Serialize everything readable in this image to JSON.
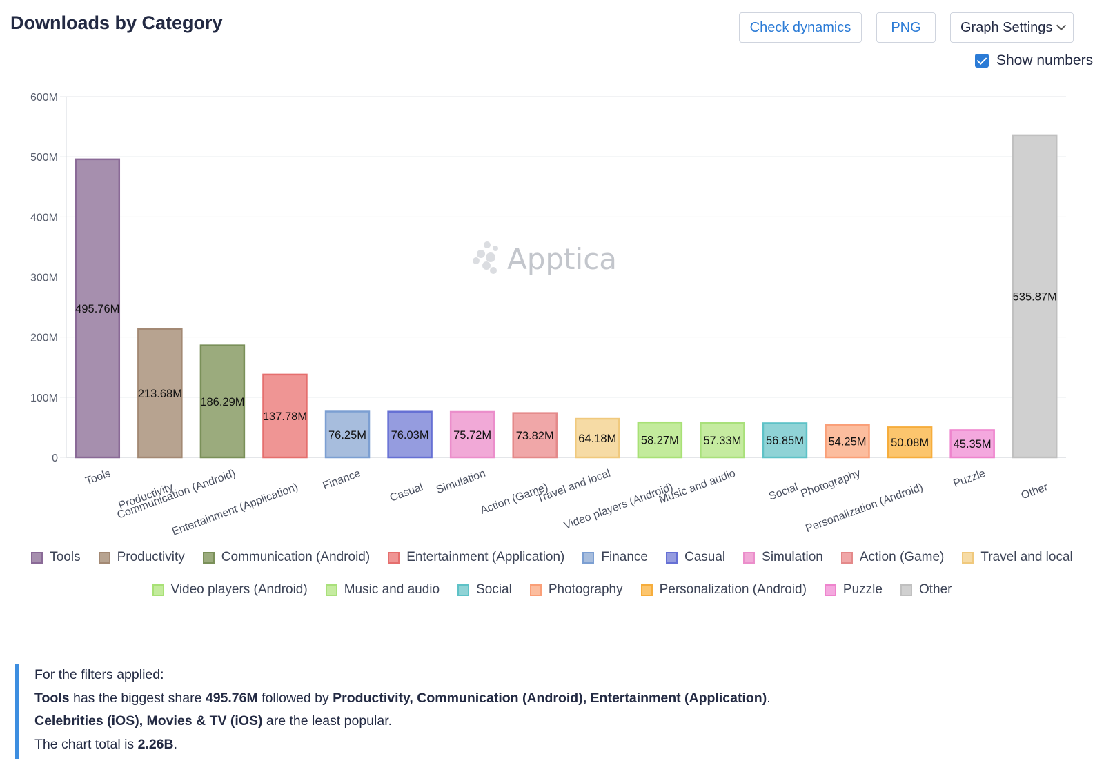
{
  "header": {
    "title": "Downloads by Category",
    "check_dynamics_label": "Check dynamics",
    "png_label": "PNG",
    "graph_settings_label": "Graph Settings",
    "show_numbers_label": "Show numbers",
    "show_numbers_checked": true
  },
  "watermark": "Apptica",
  "chart_data": {
    "type": "bar",
    "title": "Downloads by Category",
    "xlabel": "",
    "ylabel": "",
    "ylim": [
      0,
      600000000
    ],
    "yticks": [
      {
        "value": 0,
        "label": "0"
      },
      {
        "value": 100000000,
        "label": "100M"
      },
      {
        "value": 200000000,
        "label": "200M"
      },
      {
        "value": 300000000,
        "label": "300M"
      },
      {
        "value": 400000000,
        "label": "400M"
      },
      {
        "value": 500000000,
        "label": "500M"
      },
      {
        "value": 600000000,
        "label": "600M"
      }
    ],
    "grid": true,
    "legend_position": "bottom",
    "categories": [
      "Tools",
      "Productivity",
      "Communication (Android)",
      "Entertainment (Application)",
      "Finance",
      "Casual",
      "Simulation",
      "Action (Game)",
      "Travel and local",
      "Video players (Android)",
      "Music and audio",
      "Social",
      "Photography",
      "Personalization (Android)",
      "Puzzle",
      "Other"
    ],
    "values": [
      495760000,
      213680000,
      186290000,
      137780000,
      76250000,
      76030000,
      75720000,
      73820000,
      64180000,
      58270000,
      57330000,
      56850000,
      54250000,
      50080000,
      45350000,
      535870000
    ],
    "value_labels": [
      "495.76M",
      "213.68M",
      "186.29M",
      "137.78M",
      "76.25M",
      "76.03M",
      "75.72M",
      "73.82M",
      "64.18M",
      "58.27M",
      "57.33M",
      "56.85M",
      "54.25M",
      "50.08M",
      "45.35M",
      "535.87M"
    ],
    "fill_colors": [
      "#a68fae",
      "#b7a390",
      "#9bab7d",
      "#ef9594",
      "#a7bddd",
      "#959cdf",
      "#f1a9d7",
      "#f0a7a8",
      "#f6dba5",
      "#c3eb9c",
      "#c5eba0",
      "#8fd3d6",
      "#fcbd9e",
      "#fcc56d",
      "#f4a8de",
      "#d0d0d0"
    ],
    "stroke_colors": [
      "#8a6a97",
      "#a38974",
      "#7a9059",
      "#e56f6e",
      "#7c9fd2",
      "#6670d4",
      "#eb8ecb",
      "#e4898a",
      "#f0c97d",
      "#a8e176",
      "#a9e07b",
      "#5ec2c7",
      "#fa9f78",
      "#f6ad3c",
      "#ee84cd",
      "#c0c0c0"
    ]
  },
  "legend_rows": [
    [
      0,
      1,
      2,
      3,
      4,
      5,
      6,
      7,
      8
    ],
    [
      9,
      10,
      11,
      12,
      13,
      14,
      15
    ]
  ],
  "summary": {
    "line1": "For the filters applied:",
    "line2_bold1": "Tools",
    "line2_text1": " has the biggest share ",
    "line2_bold2": "495.76M",
    "line2_text2": " followed by ",
    "line2_bold3": "Productivity, Communication (Android), Entertainment (Application)",
    "line2_text3": ".",
    "line3_bold": "Celebrities (iOS), Movies & TV (iOS)",
    "line3_text": " are the least popular.",
    "line4_text": "The chart total is ",
    "line4_bold": "2.26B",
    "line4_end": "."
  }
}
